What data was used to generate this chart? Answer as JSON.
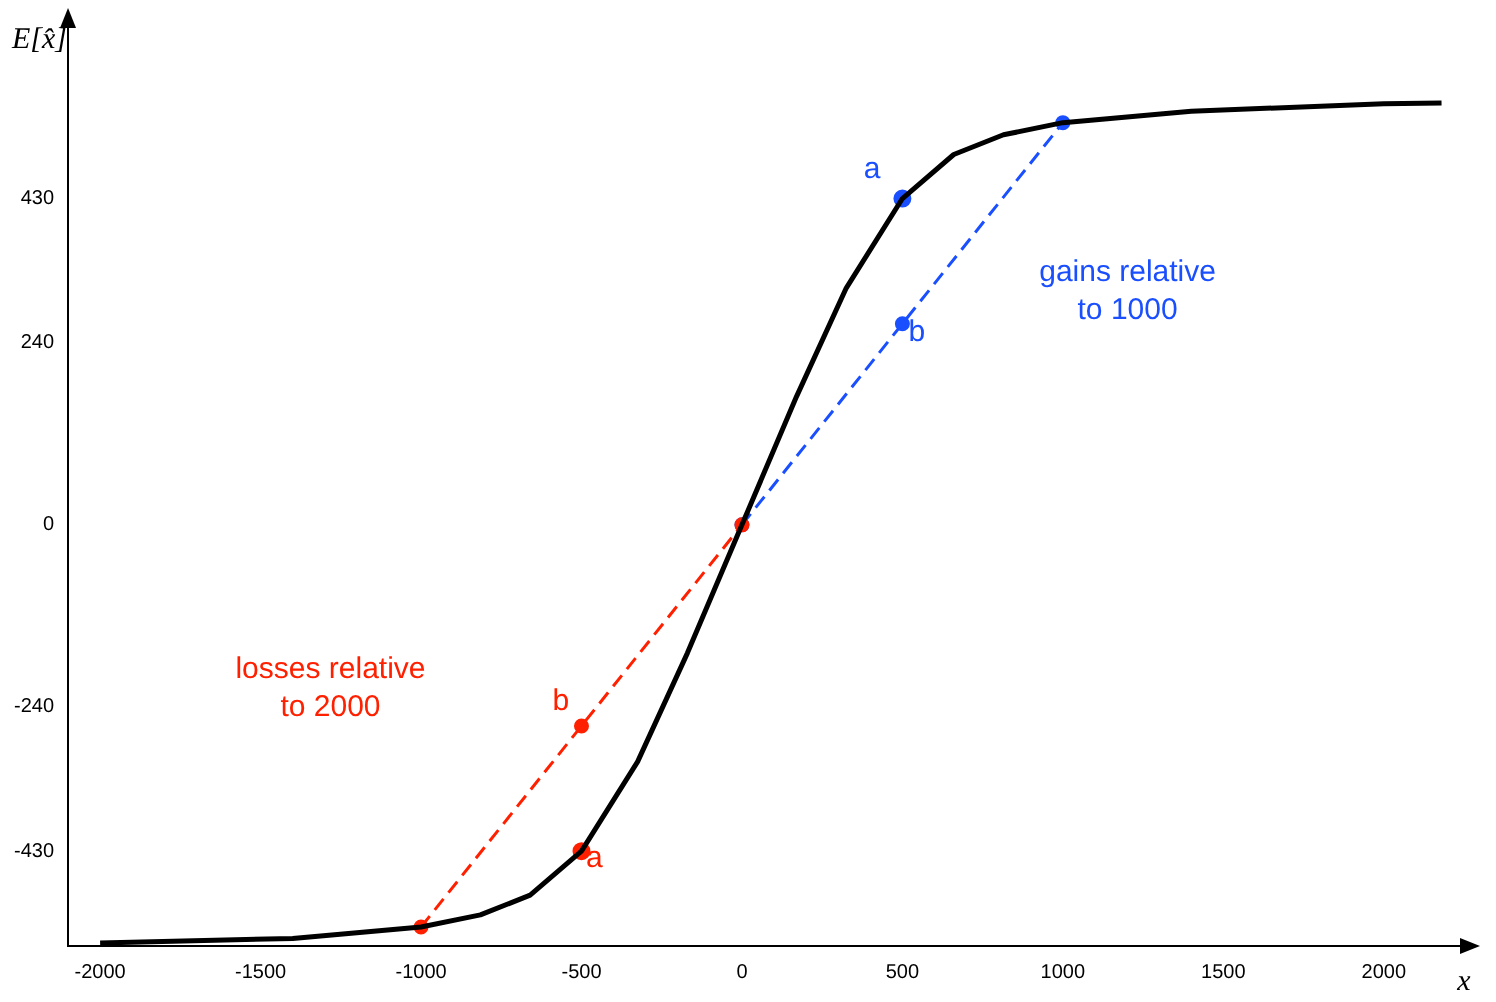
{
  "chart_data": {
    "type": "line",
    "xlabel": "x",
    "ylabel": "E[x̂]",
    "xlim": [
      -2100,
      2250
    ],
    "ylim": [
      -555,
      660
    ],
    "xticks": [
      -2000,
      -1500,
      -1000,
      -500,
      0,
      500,
      1000,
      1500,
      2000
    ],
    "yticks": [
      -430,
      -240,
      0,
      240,
      430
    ],
    "grid": false,
    "legend": false,
    "series": [
      {
        "color": "#000000",
        "marker": "none",
        "line_style": "solid",
        "x": [
          -2000,
          -1400,
          -1000,
          -815,
          -660,
          -500,
          -325,
          -170,
          0,
          170,
          325,
          500,
          660,
          815,
          1000,
          1400,
          2000,
          2180
        ],
        "values": [
          -551,
          -545,
          -530,
          -514,
          -488,
          -430,
          -312,
          -169,
          0,
          169,
          312,
          430,
          488,
          514,
          530,
          545,
          555,
          556
        ]
      },
      {
        "color": "#ff2000",
        "marker": "circle",
        "line_style": "dashed",
        "x": [
          -1000,
          -500,
          0
        ],
        "values": [
          -530,
          -265,
          0
        ]
      },
      {
        "color": "#1a4fff",
        "marker": "circle",
        "line_style": "dashed",
        "x": [
          0,
          500,
          1000
        ],
        "values": [
          0,
          265,
          530
        ]
      },
      {
        "type": "scatter",
        "color": "#ff2000",
        "marker": "circle",
        "x": [
          -500
        ],
        "values": [
          -430
        ]
      },
      {
        "type": "scatter",
        "color": "#1a4fff",
        "marker": "circle",
        "x": [
          500
        ],
        "values": [
          430
        ]
      }
    ],
    "annotations": [
      "a",
      "b",
      "a",
      "b",
      "losses relative\nto 2000",
      "gains relative\nto 1000"
    ]
  }
}
